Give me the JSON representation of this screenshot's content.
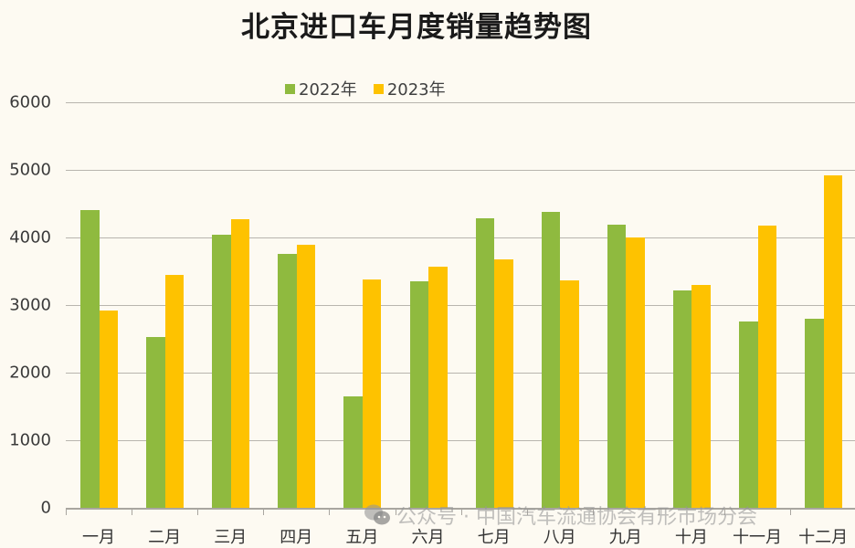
{
  "chart_data": {
    "type": "bar",
    "title": "北京进口车月度销量趋势图",
    "xlabel": "",
    "ylabel": "",
    "ylim": [
      0,
      6000
    ],
    "yticks": [
      0,
      1000,
      2000,
      3000,
      4000,
      5000,
      6000
    ],
    "grid": true,
    "legend_position": "top",
    "categories": [
      "一月",
      "二月",
      "三月",
      "四月",
      "五月",
      "六月",
      "七月",
      "八月",
      "九月",
      "十月",
      "十一月",
      "十二月"
    ],
    "series": [
      {
        "name": "2022年",
        "color": "#8fba3f",
        "values": [
          4405,
          2527,
          4040,
          3757,
          1645,
          3351,
          4284,
          4374,
          4193,
          3212,
          2752,
          2802
        ]
      },
      {
        "name": "2023年",
        "color": "#fec200",
        "values": [
          2919,
          3450,
          4270,
          3892,
          3382,
          3568,
          3671,
          3369,
          3995,
          3302,
          4180,
          4919
        ]
      }
    ]
  },
  "watermark": {
    "icon": "wechat-icon",
    "text": "公众号 · 中国汽车流通协会有形市场分会"
  }
}
